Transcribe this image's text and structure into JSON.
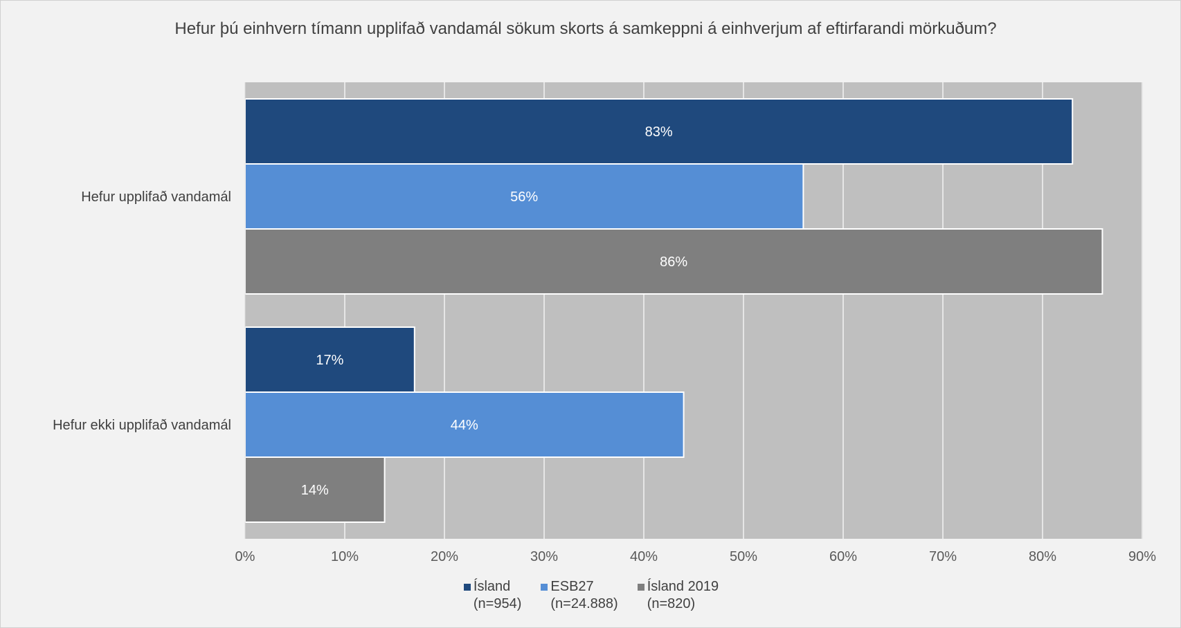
{
  "chart_data": {
    "type": "bar",
    "orientation": "horizontal",
    "title": "Hefur þú einhvern tímann upplifað vandamál sökum skorts á samkeppni á einhverjum af eftirfarandi mörkuðum?",
    "categories": [
      "Hefur upplifað vandamál",
      "Hefur ekki upplifað vandamál"
    ],
    "series": [
      {
        "name": "Ísland",
        "sample": "(n=954)",
        "color": "#1f497d",
        "values": [
          83,
          17
        ],
        "labels": [
          "83%",
          "17%"
        ]
      },
      {
        "name": "ESB27",
        "sample": "(n=24.888)",
        "color": "#558ed5",
        "values": [
          56,
          44
        ],
        "labels": [
          "56%",
          "44%"
        ]
      },
      {
        "name": "Ísland 2019",
        "sample": "(n=820)",
        "color": "#7f7f7f",
        "values": [
          86,
          14
        ],
        "labels": [
          "86%",
          "14%"
        ]
      }
    ],
    "xlim": [
      0,
      90
    ],
    "x_ticks": [
      0,
      10,
      20,
      30,
      40,
      50,
      60,
      70,
      80,
      90
    ],
    "x_tick_labels": [
      "0%",
      "10%",
      "20%",
      "30%",
      "40%",
      "50%",
      "60%",
      "70%",
      "80%",
      "90%"
    ],
    "xlabel": "",
    "ylabel": "",
    "grid": true,
    "plot_background": "#bfbfbf",
    "gridline_color": "#e6e6e6",
    "legend_position": "bottom"
  }
}
